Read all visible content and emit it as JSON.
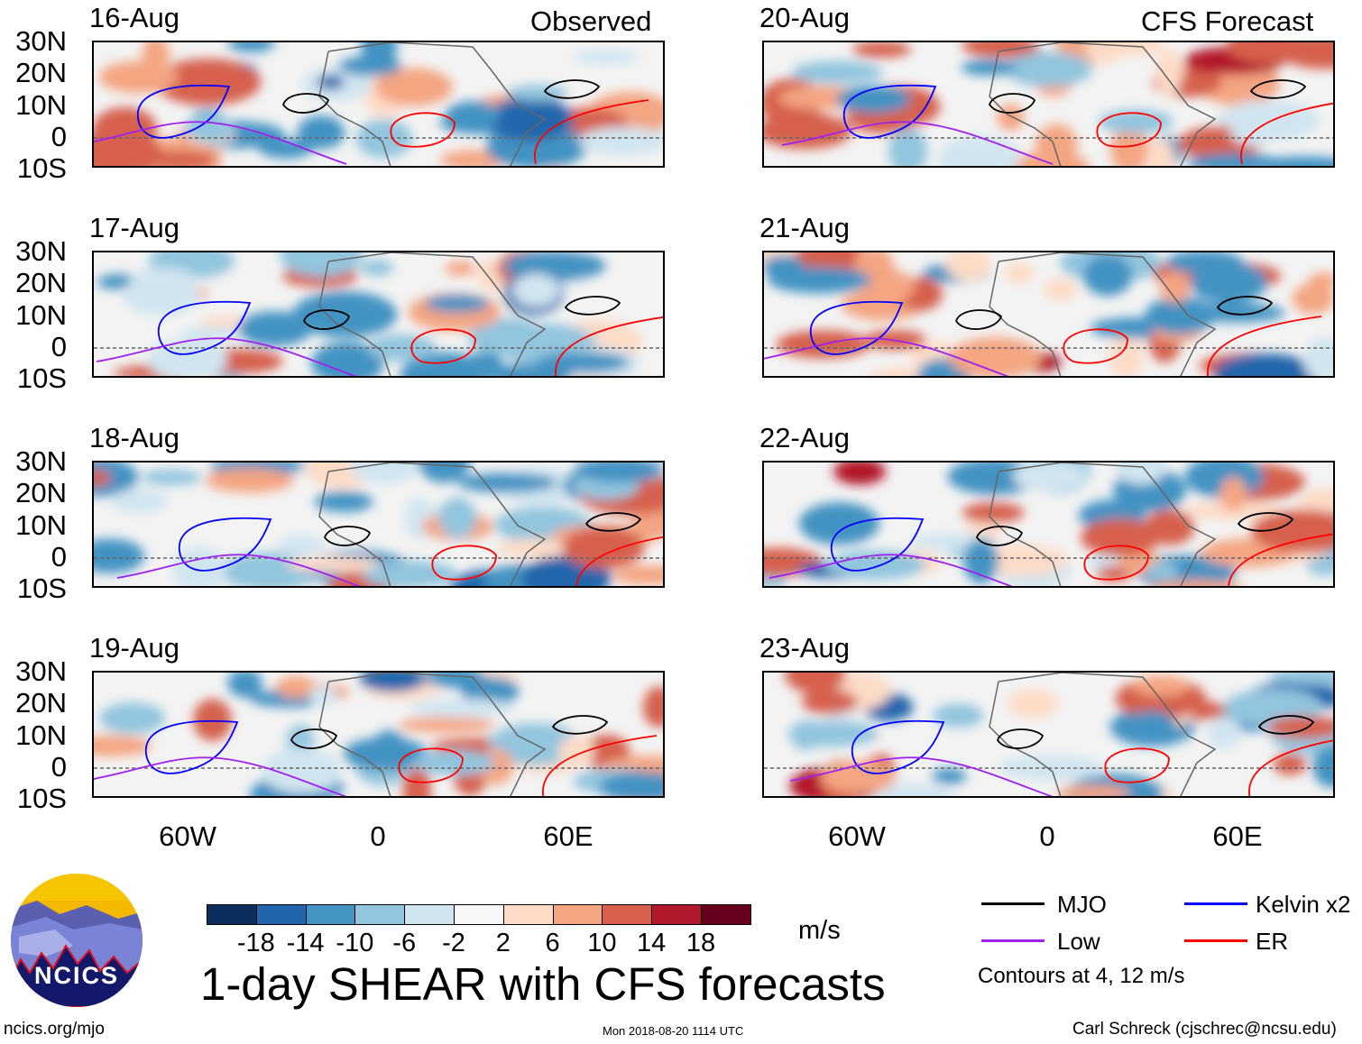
{
  "header": {
    "observed_label": "Observed",
    "forecast_label": "CFS Forecast"
  },
  "panels": {
    "observed": [
      "16-Aug",
      "17-Aug",
      "18-Aug",
      "19-Aug"
    ],
    "forecast": [
      "20-Aug",
      "21-Aug",
      "22-Aug",
      "23-Aug"
    ]
  },
  "axes": {
    "lat_labels": [
      "30N",
      "20N",
      "10N",
      "0",
      "10S"
    ],
    "lon_labels": [
      "60W",
      "0",
      "60E"
    ]
  },
  "colorbar": {
    "colors": [
      "#0c2e5c",
      "#2166ac",
      "#4393c3",
      "#92c5de",
      "#d1e5f0",
      "#f7f7f7",
      "#fddbc7",
      "#f4a582",
      "#d6604d",
      "#b2182b",
      "#67001f"
    ],
    "ticks": [
      "-18",
      "-14",
      "-10",
      "-6",
      "-2",
      "2",
      "6",
      "10",
      "14",
      "18"
    ],
    "units": "m/s"
  },
  "title": "1-day SHEAR with CFS forecasts",
  "legend": {
    "items": [
      {
        "label": "MJO",
        "color": "#000000"
      },
      {
        "label": "Kelvin x2",
        "color": "#0000ff"
      },
      {
        "label": "Low",
        "color": "#a020f0"
      },
      {
        "label": "ER",
        "color": "#ff0000"
      }
    ],
    "contours_note": "Contours at 4, 12 m/s"
  },
  "logo": {
    "text": "NCICS"
  },
  "footer": {
    "url": "ncics.org/mjo",
    "timestamp": "Mon 2018-08-20 1114 UTC",
    "credit": "Carl Schreck (cjschrec@ncsu.edu)"
  }
}
